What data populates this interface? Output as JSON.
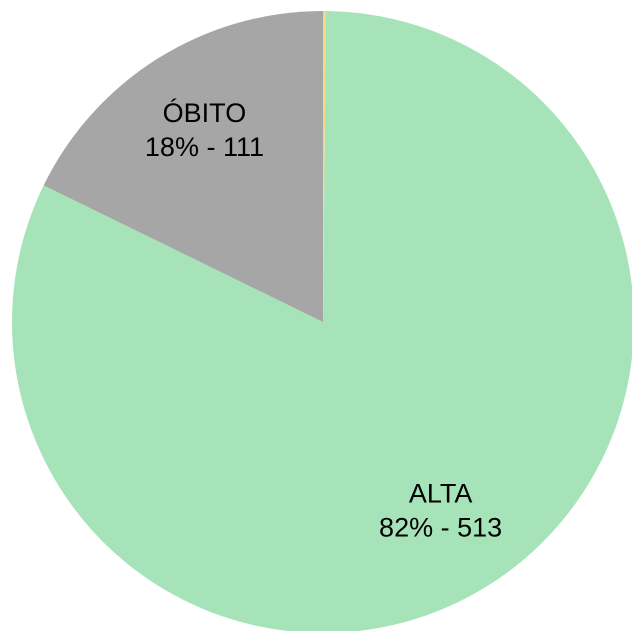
{
  "chart_data": {
    "type": "pie",
    "categories": [
      null,
      "ALTA",
      "ÓBITO"
    ],
    "values": [
      1,
      513,
      111
    ],
    "value_labels": [
      null,
      "82% - 513",
      "18% - 111"
    ],
    "colors": [
      "#f2d98a",
      "#a6e3b8",
      "#a6a6a6"
    ]
  }
}
